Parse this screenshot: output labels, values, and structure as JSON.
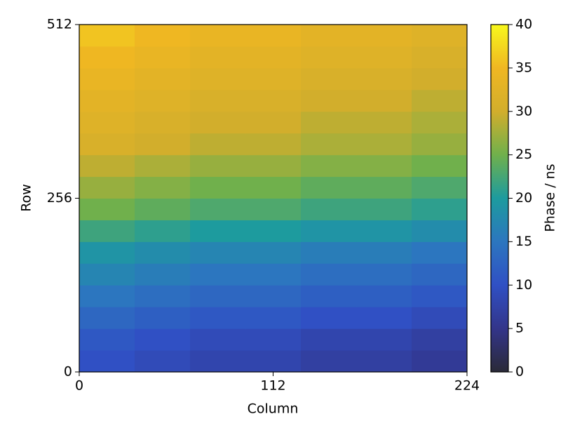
{
  "chart_data": {
    "type": "heatmap",
    "xlabel": "Column",
    "ylabel": "Row",
    "colorbar_label": "Phase / ns",
    "xlim": [
      0,
      224
    ],
    "ylim": [
      0,
      512
    ],
    "xticks": [
      0,
      112,
      224
    ],
    "yticks": [
      0,
      256,
      512
    ],
    "x_edges": [
      0,
      32,
      64,
      96,
      128,
      160,
      192,
      224
    ],
    "y_edges": [
      0,
      32,
      64,
      96,
      128,
      160,
      192,
      224,
      256,
      288,
      320,
      352,
      384,
      416,
      448,
      480,
      512
    ],
    "z": [
      [
        10,
        9,
        8,
        8,
        7,
        7,
        6
      ],
      [
        11,
        10,
        9,
        9,
        8,
        8,
        7
      ],
      [
        13,
        12,
        11,
        11,
        10,
        10,
        9
      ],
      [
        15,
        14,
        13,
        13,
        12,
        12,
        11
      ],
      [
        17,
        16,
        15,
        15,
        14,
        14,
        13
      ],
      [
        19,
        18,
        17,
        17,
        16,
        16,
        15
      ],
      [
        22,
        21,
        20,
        20,
        19,
        19,
        18
      ],
      [
        25,
        24,
        23,
        23,
        22,
        22,
        21
      ],
      [
        27,
        26,
        25,
        25,
        24,
        24,
        23
      ],
      [
        29,
        28,
        27,
        27,
        26,
        26,
        25
      ],
      [
        31,
        30,
        29,
        29,
        28,
        28,
        27
      ],
      [
        32,
        31,
        30,
        30,
        29,
        29,
        28
      ],
      [
        33,
        32,
        31,
        31,
        30,
        30,
        29
      ],
      [
        34,
        33,
        32,
        32,
        31,
        31,
        30
      ],
      [
        35,
        34,
        33,
        33,
        32,
        32,
        31
      ],
      [
        36,
        35,
        34,
        34,
        33,
        33,
        32
      ]
    ],
    "clim": [
      0,
      40
    ],
    "cticks": [
      0,
      5,
      10,
      15,
      20,
      25,
      30,
      35,
      40
    ],
    "colormap": [
      "#2a2a38",
      "#33358a",
      "#3050c4",
      "#2c76bf",
      "#1d9b9e",
      "#70b04c",
      "#d2ae2c",
      "#efb722",
      "#f8f81c"
    ]
  }
}
